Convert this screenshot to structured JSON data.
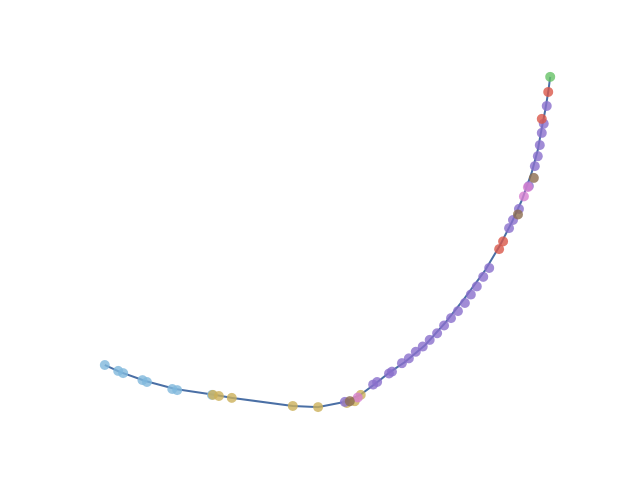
{
  "chart_data": {
    "type": "scatter",
    "xlim": [
      0,
      100
    ],
    "ylim": [
      0,
      100
    ],
    "line": {
      "color": "#4a6fa5",
      "x": [
        5.0,
        8.1,
        13.1,
        19.2,
        27.2,
        30.6,
        42.9,
        48.0,
        53.4,
        56.5,
        59.5,
        62.5,
        65.5,
        69.6,
        73.6,
        77.6,
        81.7,
        84.7,
        87.1,
        89.1,
        91.1,
        92.3,
        93.1,
        93.8,
        94.4,
        94.8
      ],
      "values": [
        16.8,
        14.9,
        12.5,
        10.3,
        8.7,
        7.9,
        5.7,
        5.4,
        6.8,
        8.7,
        11.7,
        14.9,
        17.6,
        22.2,
        28.2,
        35.0,
        42.5,
        49.3,
        55.6,
        61.5,
        69.1,
        75.1,
        81.0,
        85.9,
        90.8,
        94.9
      ]
    },
    "series": [
      {
        "color": "#7fb8dc",
        "x": [
          5.0,
          7.7,
          8.7,
          12.6,
          13.5,
          18.6,
          19.6,
          26.6
        ],
        "values": [
          16.8,
          15.2,
          14.6,
          12.7,
          12.2,
          10.3,
          10.0,
          8.7
        ]
      },
      {
        "color": "#ccb05a",
        "x": [
          26.8,
          28.0,
          30.6,
          42.9,
          48.0,
          53.8,
          55.4,
          56.6
        ],
        "values": [
          8.7,
          8.4,
          7.9,
          5.7,
          5.4,
          6.5,
          7.0,
          8.7
        ]
      },
      {
        "color": "#8a6fcc",
        "x": [
          53.4,
          59.1,
          59.9,
          62.3,
          62.9,
          64.9,
          66.3,
          67.7,
          69.1,
          70.5,
          72.0,
          73.4,
          74.8,
          76.2,
          77.6,
          78.8,
          80.0,
          81.3,
          82.5,
          86.5,
          87.3,
          88.5,
          90.5,
          91.7,
          92.3,
          92.7,
          93.1,
          93.5,
          94.1
        ],
        "values": [
          6.8,
          11.5,
          12.2,
          14.5,
          15.0,
          17.3,
          18.6,
          20.4,
          21.8,
          23.6,
          25.4,
          27.5,
          29.5,
          31.4,
          33.6,
          35.9,
          38.1,
          40.7,
          43.1,
          53.9,
          56.1,
          59.1,
          65.3,
          70.7,
          73.4,
          76.4,
          79.7,
          82.2,
          87.0
        ]
      },
      {
        "color": "#d67fd0",
        "x": [
          56.0,
          89.5,
          90.3
        ],
        "values": [
          8.0,
          62.5,
          65.0
        ]
      },
      {
        "color": "#d9574a",
        "x": [
          84.5,
          85.3,
          93.1,
          94.4
        ],
        "values": [
          48.2,
          50.3,
          83.5,
          90.8
        ]
      },
      {
        "color": "#8c6d4f",
        "x": [
          54.4,
          88.3,
          91.5
        ],
        "values": [
          7.0,
          57.6,
          67.5
        ]
      },
      {
        "color": "#66c266",
        "x": [
          94.8
        ],
        "values": [
          94.9
        ]
      }
    ]
  }
}
